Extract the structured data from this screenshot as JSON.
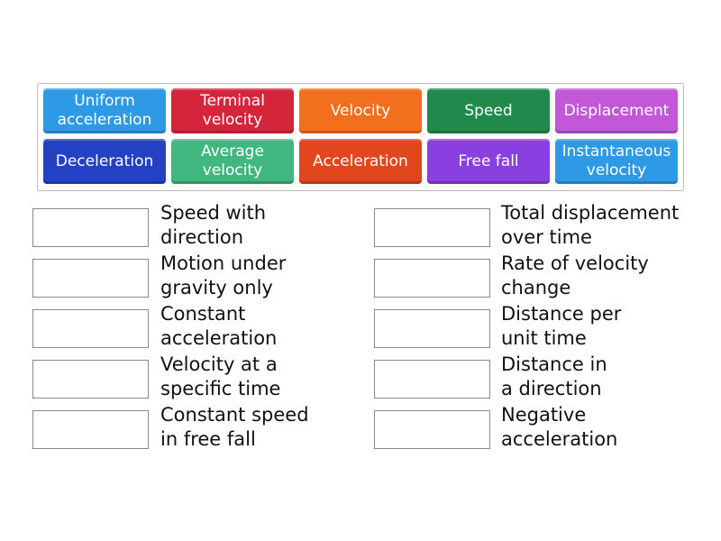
{
  "tiles": [
    {
      "label": "Uniform acceleration",
      "color": "#2e9ae6"
    },
    {
      "label": "Terminal velocity",
      "color": "#d5253c"
    },
    {
      "label": "Velocity",
      "color": "#f2701d"
    },
    {
      "label": "Speed",
      "color": "#1f8a4c"
    },
    {
      "label": "Displacement",
      "color": "#c257d8"
    },
    {
      "label": "Deceleration",
      "color": "#2441c4"
    },
    {
      "label": "Average velocity",
      "color": "#40b77f"
    },
    {
      "label": "Acceleration",
      "color": "#e2461d"
    },
    {
      "label": "Free fall",
      "color": "#8a3fe0"
    },
    {
      "label": "Instantaneous velocity",
      "color": "#2e9ae6"
    }
  ],
  "left_definitions": [
    {
      "lines": [
        "Speed with",
        "direction"
      ]
    },
    {
      "lines": [
        "Motion under",
        "gravity only"
      ]
    },
    {
      "lines": [
        "Constant",
        "acceleration"
      ]
    },
    {
      "lines": [
        "Velocity at a",
        "specific time"
      ]
    },
    {
      "lines": [
        "Constant speed",
        "in free fall"
      ]
    }
  ],
  "right_definitions": [
    {
      "lines": [
        "Total displacement",
        "over time"
      ]
    },
    {
      "lines": [
        "Rate of velocity",
        "change"
      ]
    },
    {
      "lines": [
        "Distance per",
        "unit time"
      ]
    },
    {
      "lines": [
        "Distance in",
        "a direction"
      ]
    },
    {
      "lines": [
        "Negative",
        "acceleration"
      ]
    }
  ]
}
